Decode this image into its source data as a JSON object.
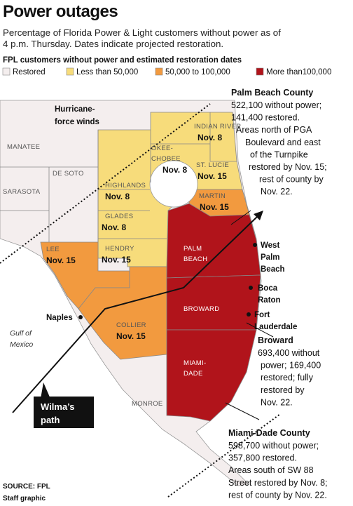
{
  "header": {
    "title": "Power outages",
    "subtitle_lines": [
      "Percentage of Florida Power & Light customers without power as of",
      "4 p.m. Thursday. Dates indicate projected restoration."
    ]
  },
  "legend": {
    "title": "FPL customers without power and estimated restoration dates",
    "items": [
      {
        "label": "Restored",
        "color": "#f4eeee"
      },
      {
        "label": "Less than 50,000",
        "color": "#f7dc7b"
      },
      {
        "label": "50,000 to 100,000",
        "color": "#f29a3f"
      },
      {
        "label": "More than100,000",
        "color": "#b1141b"
      }
    ]
  },
  "counties": [
    {
      "name_lines": [
        "INDIAN RIVER"
      ],
      "date": "Nov. 8"
    },
    {
      "name_lines": [
        "OKEE-",
        "CHOBEE"
      ],
      "date": "Nov. 8"
    },
    {
      "name_lines": [
        "ST. LUCIE"
      ],
      "date": "Nov. 15"
    },
    {
      "name_lines": [
        "HIGHLANDS"
      ],
      "date": "Nov. 8"
    },
    {
      "name_lines": [
        "MARTIN"
      ],
      "date": "Nov. 15"
    },
    {
      "name_lines": [
        "GLADES"
      ],
      "date": "Nov. 8"
    },
    {
      "name_lines": [
        "HENDRY"
      ],
      "date": "Nov. 15"
    },
    {
      "name_lines": [
        "LEE"
      ],
      "date": "Nov. 15"
    },
    {
      "name_lines": [
        "COLLIER"
      ],
      "date": "Nov. 15"
    },
    {
      "name_lines": [
        "PALM",
        "BEACH"
      ]
    },
    {
      "name_lines": [
        "BROWARD"
      ]
    },
    {
      "name_lines": [
        "MIAMI-",
        "DADE"
      ]
    },
    {
      "name_lines": [
        "MONROE"
      ]
    },
    {
      "name_lines": [
        "MANATEE"
      ]
    },
    {
      "name_lines": [
        "DE SOTO"
      ]
    },
    {
      "name_lines": [
        "SARASOTA"
      ]
    }
  ],
  "cities": [
    {
      "lines": [
        "West",
        "Palm",
        "Beach"
      ]
    },
    {
      "lines": [
        "Boca",
        "Raton"
      ]
    },
    {
      "lines": [
        "Fort",
        "Lauderdale"
      ]
    },
    {
      "lines": [
        "Naples"
      ]
    }
  ],
  "annotations": {
    "winds_lines": [
      "Hurricane-",
      "force winds"
    ],
    "gulf_lines": [
      "Gulf of",
      "Mexico"
    ],
    "path_lines": [
      "Wilma’s",
      "path"
    ]
  },
  "callouts": [
    {
      "title": "Palm Beach County",
      "lines": [
        "522,100 without power;",
        "141,400 restored.",
        "Areas north of PGA",
        "Boulevard and east",
        "of the Turnpike",
        "restored by Nov. 15;",
        "rest of county by",
        "Nov. 22."
      ]
    },
    {
      "title": "Broward",
      "lines": [
        "693,400 without",
        "power; 169,400",
        "restored; fully",
        "restored by",
        "Nov. 22."
      ]
    },
    {
      "title": "Miami-Dade County",
      "lines": [
        "598,700 without power;",
        "357,800 restored.",
        "Areas south of SW 88",
        "Street restored by Nov. 8;",
        "rest of county by Nov. 22."
      ]
    }
  ],
  "source_lines": [
    "SOURCE: FPL",
    "Staff graphic"
  ]
}
